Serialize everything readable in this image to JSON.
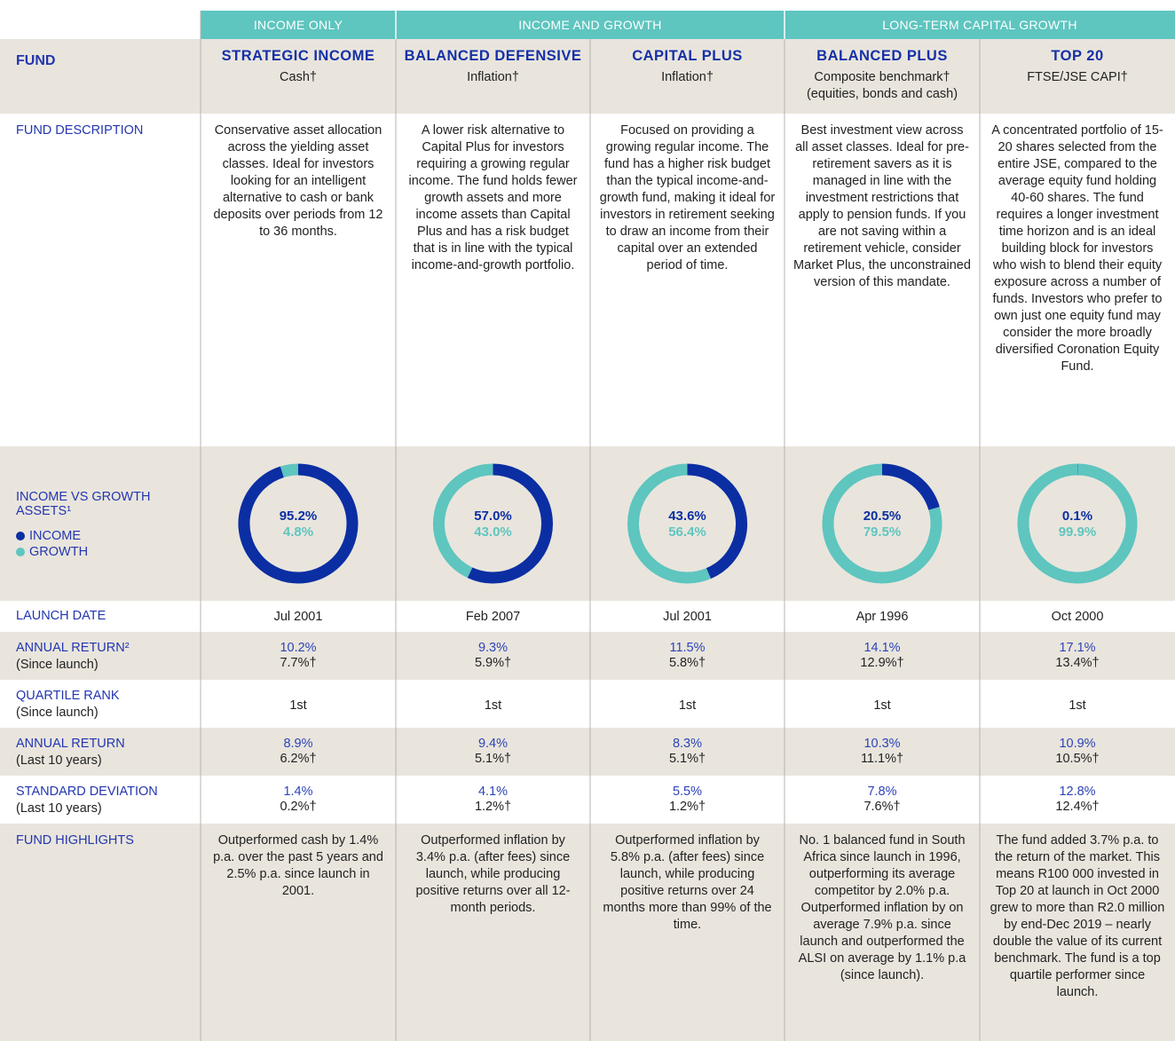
{
  "header_groups": [
    "INCOME ONLY",
    "INCOME AND GROWTH",
    "LONG-TERM CAPITAL GROWTH"
  ],
  "row_labels": [
    {
      "title": "FUND"
    },
    {
      "title": "FUND DESCRIPTION"
    },
    {
      "title": "INCOME VS GROWTH ASSETS¹",
      "legend": [
        "INCOME",
        "GROWTH"
      ]
    },
    {
      "title": "LAUNCH DATE"
    },
    {
      "title": "ANNUAL RETURN²",
      "sub": "(Since launch)"
    },
    {
      "title": "QUARTILE RANK",
      "sub": "(Since launch)"
    },
    {
      "title": "ANNUAL RETURN",
      "sub": "(Last 10 years)"
    },
    {
      "title": "STANDARD DEVIATION",
      "sub": "(Last 10 years)"
    },
    {
      "title": "FUND HIGHLIGHTS"
    }
  ],
  "legend_colors": [
    "#0b2ea3",
    "#5ec5bf"
  ],
  "funds": [
    {
      "name": "STRATEGIC INCOME",
      "benchmark": [
        "Cash†"
      ],
      "description": "Conservative asset allocation across the yielding asset classes. Ideal for investors looking for an intelligent alternative to cash or bank deposits over periods from 12 to 36 months.",
      "allocation": {
        "values": [
          95.2,
          4.8
        ],
        "value_labels": [
          "95.2%",
          "4.8%"
        ]
      },
      "launch": "Jul 2001",
      "return_since_launch": [
        "10.2%",
        "7.7%†"
      ],
      "quartile": "1st",
      "return_10y": [
        "8.9%",
        "6.2%†"
      ],
      "std_dev": [
        "1.4%",
        "0.2%†"
      ],
      "highlights": "Outperformed cash by 1.4% p.a. over the past 5 years and 2.5% p.a. since launch in 2001."
    },
    {
      "name": "BALANCED DEFENSIVE",
      "benchmark": [
        "Inflation†"
      ],
      "description": "A lower risk alternative to Capital Plus for investors requiring a growing regular income. The fund holds fewer growth assets and more income assets than Capital Plus and has a risk budget that is in line with the typical income-and-growth portfolio.",
      "allocation": {
        "values": [
          57.0,
          43.0
        ],
        "value_labels": [
          "57.0%",
          "43.0%"
        ]
      },
      "launch": "Feb 2007",
      "return_since_launch": [
        "9.3%",
        "5.9%†"
      ],
      "quartile": "1st",
      "return_10y": [
        "9.4%",
        "5.1%†"
      ],
      "std_dev": [
        "4.1%",
        "1.2%†"
      ],
      "highlights": "Outperformed inflation by 3.4% p.a. (after fees) since launch, while producing positive returns over all 12-month periods."
    },
    {
      "name": "CAPITAL PLUS",
      "benchmark": [
        "Inflation†"
      ],
      "description": "Focused on providing a growing regular income. The fund has a higher risk budget than the typical income-and-growth fund, making it ideal for investors in retirement seeking to draw an income from their capital over an extended period of time.",
      "allocation": {
        "values": [
          43.6,
          56.4
        ],
        "value_labels": [
          "43.6%",
          "56.4%"
        ]
      },
      "launch": "Jul 2001",
      "return_since_launch": [
        "11.5%",
        "5.8%†"
      ],
      "quartile": "1st",
      "return_10y": [
        "8.3%",
        "5.1%†"
      ],
      "std_dev": [
        "5.5%",
        "1.2%†"
      ],
      "highlights": "Outperformed inflation by 5.8% p.a. (after fees) since launch, while producing positive returns over 24 months more than 99% of the time."
    },
    {
      "name": "BALANCED PLUS",
      "benchmark": [
        "Composite benchmark†",
        "(equities, bonds and cash)"
      ],
      "description": "Best investment view across all asset classes. Ideal for pre-retirement savers as it is managed in line with the investment restrictions that apply to pension funds. If you are not saving within a retirement vehicle, consider Market Plus, the unconstrained version of this mandate.",
      "allocation": {
        "values": [
          20.5,
          79.5
        ],
        "value_labels": [
          "20.5%",
          "79.5%"
        ]
      },
      "launch": "Apr 1996",
      "return_since_launch": [
        "14.1%",
        "12.9%†"
      ],
      "quartile": "1st",
      "return_10y": [
        "10.3%",
        "11.1%†"
      ],
      "std_dev": [
        "7.8%",
        "7.6%†"
      ],
      "highlights": "No. 1 balanced fund in South Africa since launch in 1996, outperforming its average competitor by 2.0% p.a. Outperformed inflation by on average 7.9% p.a. since launch and outperformed the ALSI on average by 1.1% p.a (since launch)."
    },
    {
      "name": "TOP 20",
      "benchmark": [
        "FTSE/JSE CAPI†"
      ],
      "description": "A concentrated portfolio of 15-20 shares selected from the entire JSE, compared to the average equity fund holding 40-60 shares. The fund requires a longer investment time horizon and is an ideal building block for investors who wish to blend their equity exposure across a number of funds. Investors who prefer to own just one equity fund may consider the more broadly diversified Coronation Equity Fund.",
      "allocation": {
        "values": [
          0.1,
          99.9
        ],
        "value_labels": [
          "0.1%",
          "99.9%"
        ]
      },
      "launch": "Oct 2000",
      "return_since_launch": [
        "17.1%",
        "13.4%†"
      ],
      "quartile": "1st",
      "return_10y": [
        "10.9%",
        "10.5%†"
      ],
      "std_dev": [
        "12.8%",
        "12.4%†"
      ],
      "highlights": "The fund added 3.7% p.a. to the return of the market. This means R100 000 invested in Top 20 at launch in Oct 2000 grew to more than R2.0 million by end-Dec 2019 – nearly double the value of its current benchmark. The fund is a top quartile performer since launch."
    }
  ]
}
